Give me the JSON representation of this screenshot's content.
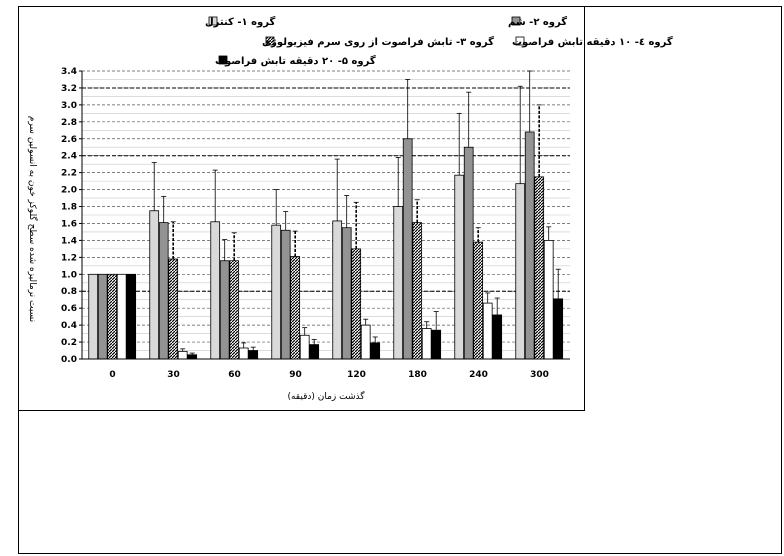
{
  "chart_data": {
    "type": "bar",
    "categories": [
      "0",
      "30",
      "60",
      "90",
      "120",
      "180",
      "240",
      "300"
    ],
    "xlabel": "گذشت زمان (دقیقه)",
    "ylabel": "نسبت نرمالیزه شده سطح گلوکز خون به انسولین سرم",
    "ylim": [
      0,
      3.4
    ],
    "ystep": 0.2,
    "ytick_labels": [
      "0.0",
      "0.2",
      "0.4",
      "0.6",
      "0.8",
      "1.0",
      "1.2",
      "1.4",
      "1.6",
      "1.8",
      "2.0",
      "2.2",
      "2.4",
      "2.6",
      "2.8",
      "3.0",
      "3.2",
      "3.4"
    ],
    "grid": true,
    "reference_lines": [
      0.8,
      2.4,
      3.2
    ],
    "legend_position": "top",
    "series": [
      {
        "name": "گروه ۱- کنترل",
        "values": [
          1.0,
          1.75,
          1.62,
          1.58,
          1.63,
          1.8,
          2.17,
          2.07
        ],
        "errors": [
          0.0,
          0.57,
          0.61,
          0.42,
          0.73,
          0.58,
          0.73,
          1.15
        ],
        "fill": "#d9d9d9",
        "stroke": "#000000",
        "error_style": "solid"
      },
      {
        "name": "گروه ۲- شم",
        "values": [
          1.0,
          1.61,
          1.16,
          1.52,
          1.55,
          2.6,
          2.5,
          2.68
        ],
        "errors": [
          0.0,
          0.31,
          0.25,
          0.22,
          0.38,
          0.7,
          0.65,
          0.72
        ],
        "fill": "#939393",
        "stroke": "#000000",
        "error_style": "solid"
      },
      {
        "name": "گروه ۳- تابش فراصوت از روی سرم فیزیولوژی",
        "values": [
          1.0,
          1.18,
          1.16,
          1.21,
          1.3,
          1.61,
          1.38,
          2.15
        ],
        "errors": [
          0.0,
          0.44,
          0.33,
          0.3,
          0.55,
          0.27,
          0.17,
          0.85
        ],
        "fill": "#7a7a7a",
        "stroke": "#000000",
        "error_style": "dashed"
      },
      {
        "name": "گروه ٤- ١٠ دقیقه تابش فراصوت",
        "values": [
          1.0,
          0.09,
          0.13,
          0.28,
          0.4,
          0.36,
          0.66,
          1.4
        ],
        "errors": [
          0.0,
          0.03,
          0.06,
          0.09,
          0.07,
          0.08,
          0.12,
          0.16
        ],
        "fill": "#ffffff",
        "stroke": "#000000",
        "error_style": "solid"
      },
      {
        "name": "گروه ۵- ٢٠ دقیقه تابش فراصوت",
        "values": [
          1.0,
          0.05,
          0.1,
          0.17,
          0.19,
          0.34,
          0.52,
          0.71
        ],
        "errors": [
          0.0,
          0.02,
          0.04,
          0.06,
          0.07,
          0.22,
          0.2,
          0.35
        ],
        "fill": "#000000",
        "stroke": "#000000",
        "error_style": "solid"
      }
    ]
  }
}
